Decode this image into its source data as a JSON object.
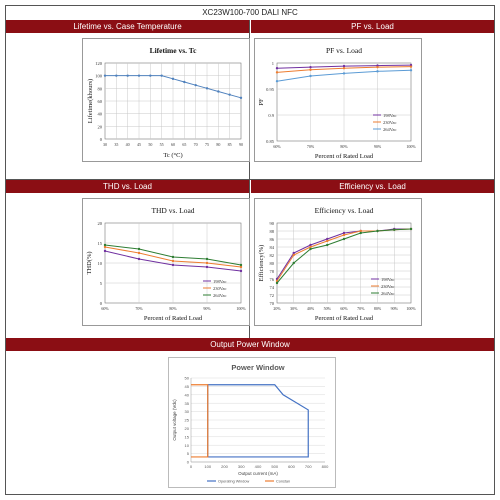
{
  "document": {
    "title": "XC23W100-700 DALI NFC"
  },
  "sections": {
    "lifetime": "Lifetime vs. Case Temperature",
    "pf": "PF vs. Load",
    "thd": "THD vs. Load",
    "efficiency": "Efficiency vs. Load",
    "power_window": "Output Power Window"
  },
  "colors": {
    "header_bar": "#8b0e14",
    "blue": "#4472c4",
    "orange": "#ed7d31",
    "green": "#2e7d32",
    "purple": "#7030a0",
    "lightblue": "#5b9bd5",
    "steel": "#4f81bd"
  },
  "chart_data": [
    {
      "id": "lifetime",
      "type": "line",
      "title": "Lifetime vs. Tc",
      "xlabel": "Tc (°C)",
      "ylabel": "Lifetime(khours)",
      "xlim": [
        30,
        90
      ],
      "ylim": [
        0,
        120
      ],
      "x_ticks": [
        "30",
        "35",
        "40",
        "45",
        "50",
        "55",
        "60",
        "65",
        "70",
        "75",
        "80",
        "85",
        "90"
      ],
      "y_ticks": [
        "0",
        "20",
        "40",
        "60",
        "80",
        "100",
        "120"
      ],
      "grid": true,
      "series": [
        {
          "x": [
            30,
            35,
            40,
            45,
            50,
            55,
            60,
            65,
            70,
            75,
            80,
            85,
            90
          ],
          "values": [
            100,
            100,
            100,
            100,
            100,
            100,
            95,
            90,
            85,
            80,
            75,
            70,
            65
          ]
        }
      ]
    },
    {
      "id": "pf",
      "type": "line",
      "title": "PF vs. Load",
      "xlabel": "Percent of Rated Load",
      "ylabel": "PF",
      "categories": [
        "60%",
        "70%",
        "80%",
        "90%",
        "100%"
      ],
      "y_ticks": [
        "0.85",
        "0.9",
        "0.95",
        "1"
      ],
      "ylim": [
        0.85,
        1.0
      ],
      "legend_position": "bottom-right",
      "series": [
        {
          "name": "198Vac",
          "values": [
            0.99,
            0.992,
            0.994,
            0.995,
            0.996
          ]
        },
        {
          "name": "230Vac",
          "values": [
            0.982,
            0.987,
            0.99,
            0.992,
            0.993
          ]
        },
        {
          "name": "264Vac",
          "values": [
            0.965,
            0.975,
            0.98,
            0.984,
            0.986
          ]
        }
      ]
    },
    {
      "id": "thd",
      "type": "line",
      "title": "THD vs. Load",
      "xlabel": "Percent of Rated Load",
      "ylabel": "THD(%)",
      "categories": [
        "60%",
        "70%",
        "80%",
        "90%",
        "100%"
      ],
      "y_ticks": [
        "0",
        "5",
        "10",
        "15",
        "20"
      ],
      "ylim": [
        0,
        20
      ],
      "legend_position": "bottom-right",
      "series": [
        {
          "name": "198Vac",
          "values": [
            13,
            11,
            9.5,
            9,
            8
          ]
        },
        {
          "name": "230Vac",
          "values": [
            14,
            12.5,
            10.5,
            10,
            9
          ]
        },
        {
          "name": "264Vac",
          "values": [
            14.5,
            13.5,
            11.5,
            11,
            9.5
          ]
        }
      ]
    },
    {
      "id": "efficiency",
      "type": "line",
      "title": "Efficiency vs. Load",
      "xlabel": "Percent of Rated Load",
      "ylabel": "Efficiency(%)",
      "categories": [
        "20%",
        "30%",
        "40%",
        "50%",
        "60%",
        "70%",
        "80%",
        "90%",
        "100%"
      ],
      "y_ticks": [
        "70",
        "72",
        "74",
        "76",
        "78",
        "80",
        "82",
        "84",
        "86",
        "88",
        "90"
      ],
      "ylim": [
        70,
        90
      ],
      "legend_position": "bottom-right",
      "series": [
        {
          "name": "198Vac",
          "values": [
            76,
            82.5,
            84.5,
            86,
            87.5,
            88,
            88,
            88.5,
            88.5
          ]
        },
        {
          "name": "230Vac",
          "values": [
            75.5,
            82,
            84,
            85.5,
            87,
            88,
            88,
            88.3,
            88.5
          ]
        },
        {
          "name": "264Vac",
          "values": [
            75,
            80,
            83.5,
            84.5,
            86,
            87.5,
            88,
            88.3,
            88.5
          ]
        }
      ]
    },
    {
      "id": "power_window",
      "type": "line",
      "title": "Power Window",
      "xlabel": "Output current (mA)",
      "ylabel": "Output voltage (Vdc)",
      "xlim": [
        0,
        800
      ],
      "ylim": [
        0,
        50
      ],
      "x_ticks": [
        "0",
        "100",
        "200",
        "300",
        "400",
        "500",
        "600",
        "700",
        "800"
      ],
      "y_ticks": [
        "0",
        "5",
        "10",
        "15",
        "20",
        "25",
        "30",
        "35",
        "40",
        "45",
        "50"
      ],
      "legend_position": "bottom",
      "series": [
        {
          "name": "Operating Window",
          "x": [
            100,
            100,
            500,
            550,
            700,
            700,
            100
          ],
          "values": [
            3,
            46,
            46,
            40,
            31,
            3,
            3
          ]
        },
        {
          "name": "Constan",
          "x": [
            0,
            100,
            100,
            0
          ],
          "values": [
            46,
            46,
            3,
            3
          ]
        }
      ]
    }
  ]
}
